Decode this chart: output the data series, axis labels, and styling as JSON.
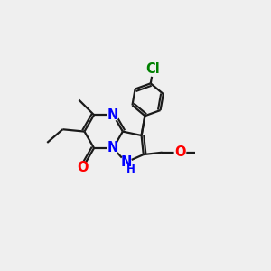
{
  "bg_color": "#efefef",
  "bond_color": "#1a1a1a",
  "n_color": "#0000ff",
  "o_color": "#ff0000",
  "cl_color": "#008000",
  "line_width": 1.6,
  "font_size": 10.5,
  "small_font_size": 8.5,
  "figsize": [
    3.0,
    3.0
  ],
  "dpi": 100,
  "xlim": [
    0,
    10
  ],
  "ylim": [
    0,
    10
  ]
}
